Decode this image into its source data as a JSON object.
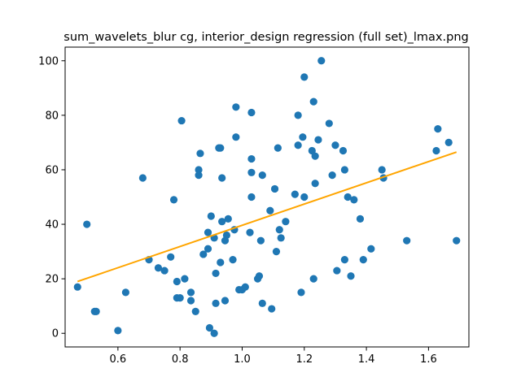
{
  "chart_data": {
    "type": "scatter",
    "title": "sum_wavelets_blur cg, interior_design regression (full set)_lmax.png",
    "xlabel": "",
    "ylabel": "",
    "xlim": [
      0.43,
      1.73
    ],
    "ylim": [
      -5,
      105
    ],
    "xticks": [
      0.6,
      0.8,
      1.0,
      1.2,
      1.4,
      1.6
    ],
    "xtick_labels": [
      "0.6",
      "0.8",
      "1.0",
      "1.2",
      "1.4",
      "1.6"
    ],
    "yticks": [
      0,
      20,
      40,
      60,
      80,
      100
    ],
    "ytick_labels": [
      "0",
      "20",
      "40",
      "60",
      "80",
      "100"
    ],
    "grid": false,
    "points_color": "#1f77b4",
    "line_color": "#ffa500",
    "regression_line": {
      "x": [
        0.47,
        1.69
      ],
      "y": [
        19,
        66.5
      ]
    },
    "points": [
      [
        0.47,
        17
      ],
      [
        0.5,
        40
      ],
      [
        0.525,
        8
      ],
      [
        0.53,
        8
      ],
      [
        0.6,
        1
      ],
      [
        0.625,
        15
      ],
      [
        0.68,
        57
      ],
      [
        0.7,
        27
      ],
      [
        0.73,
        24
      ],
      [
        0.75,
        23
      ],
      [
        0.77,
        28
      ],
      [
        0.78,
        49
      ],
      [
        0.79,
        13
      ],
      [
        0.79,
        19
      ],
      [
        0.8,
        13
      ],
      [
        0.805,
        78
      ],
      [
        0.815,
        20
      ],
      [
        0.835,
        12
      ],
      [
        0.835,
        15
      ],
      [
        0.85,
        8
      ],
      [
        0.86,
        60
      ],
      [
        0.86,
        58
      ],
      [
        0.865,
        66
      ],
      [
        0.875,
        29
      ],
      [
        0.89,
        31
      ],
      [
        0.89,
        37
      ],
      [
        0.895,
        2
      ],
      [
        0.9,
        43
      ],
      [
        0.91,
        0
      ],
      [
        0.91,
        35
      ],
      [
        0.915,
        22
      ],
      [
        0.915,
        11
      ],
      [
        0.925,
        68
      ],
      [
        0.93,
        68
      ],
      [
        0.93,
        26
      ],
      [
        0.935,
        57
      ],
      [
        0.935,
        41
      ],
      [
        0.945,
        12
      ],
      [
        0.945,
        34
      ],
      [
        0.95,
        36
      ],
      [
        0.955,
        42
      ],
      [
        0.97,
        27
      ],
      [
        0.975,
        38
      ],
      [
        0.98,
        83
      ],
      [
        0.98,
        72
      ],
      [
        0.99,
        16
      ],
      [
        1.0,
        16
      ],
      [
        1.01,
        17
      ],
      [
        1.025,
        37
      ],
      [
        1.03,
        81
      ],
      [
        1.03,
        64
      ],
      [
        1.03,
        59
      ],
      [
        1.03,
        50
      ],
      [
        1.05,
        20
      ],
      [
        1.055,
        21
      ],
      [
        1.06,
        34
      ],
      [
        1.065,
        11
      ],
      [
        1.065,
        58
      ],
      [
        1.09,
        45
      ],
      [
        1.095,
        9
      ],
      [
        1.105,
        53
      ],
      [
        1.11,
        30
      ],
      [
        1.115,
        68
      ],
      [
        1.12,
        38
      ],
      [
        1.125,
        35
      ],
      [
        1.14,
        41
      ],
      [
        1.17,
        51
      ],
      [
        1.18,
        80
      ],
      [
        1.18,
        69
      ],
      [
        1.19,
        15
      ],
      [
        1.195,
        72
      ],
      [
        1.2,
        94
      ],
      [
        1.2,
        50
      ],
      [
        1.225,
        67
      ],
      [
        1.23,
        20
      ],
      [
        1.23,
        85
      ],
      [
        1.235,
        65
      ],
      [
        1.235,
        55
      ],
      [
        1.245,
        71
      ],
      [
        1.255,
        100
      ],
      [
        1.28,
        77
      ],
      [
        1.29,
        58
      ],
      [
        1.3,
        69
      ],
      [
        1.305,
        23
      ],
      [
        1.325,
        67
      ],
      [
        1.33,
        60
      ],
      [
        1.33,
        27
      ],
      [
        1.34,
        50
      ],
      [
        1.35,
        21
      ],
      [
        1.36,
        49
      ],
      [
        1.38,
        42
      ],
      [
        1.39,
        27
      ],
      [
        1.415,
        31
      ],
      [
        1.45,
        60
      ],
      [
        1.455,
        57
      ],
      [
        1.53,
        34
      ],
      [
        1.625,
        67
      ],
      [
        1.63,
        75
      ],
      [
        1.665,
        70
      ],
      [
        1.69,
        34
      ]
    ]
  }
}
